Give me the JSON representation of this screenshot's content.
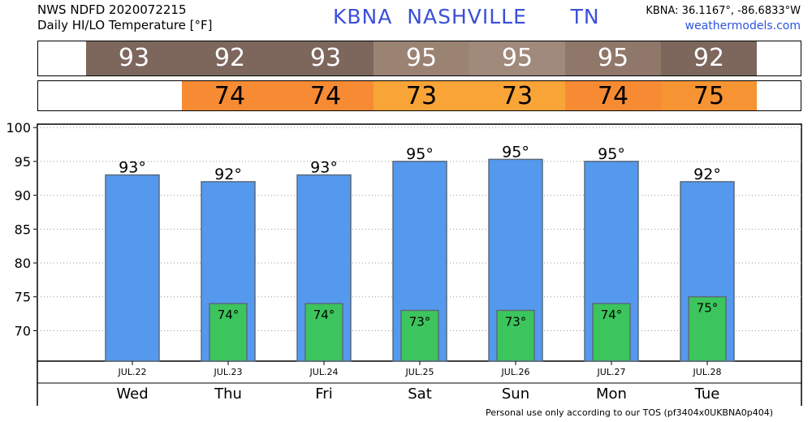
{
  "header": {
    "source_line": "NWS NDFD 2020072215",
    "product_line": "Daily HI/LO Temperature [°F]",
    "station_id": "KBNA",
    "city": "NASHVILLE",
    "state": "TN",
    "coords": "KBNA: 36.1167°, -86.6833°W",
    "site": "weathermodels.com"
  },
  "hi_strip": {
    "values": [
      "93",
      "92",
      "93",
      "95",
      "95",
      "95",
      "92"
    ],
    "colors": [
      "#7d675d",
      "#7d675d",
      "#7d675d",
      "#9b8374",
      "#a08a7c",
      "#8f786a",
      "#7d675d"
    ]
  },
  "lo_strip": {
    "values": [
      "",
      "74",
      "74",
      "73",
      "73",
      "74",
      "75"
    ],
    "colors": [
      "#ffffff",
      "#f68b34",
      "#f68b34",
      "#f9a437",
      "#f9a437",
      "#f68b34",
      "#f69434"
    ]
  },
  "footer": "Personal use only according to our TOS (pf3404x0UKBNA0p404)",
  "chart_data": {
    "type": "bar",
    "categories": [
      "Wed",
      "Thu",
      "Fri",
      "Sat",
      "Sun",
      "Mon",
      "Tue"
    ],
    "dates": [
      "JUL.22",
      "JUL.23",
      "JUL.24",
      "JUL.25",
      "JUL.26",
      "JUL.27",
      "JUL.28"
    ],
    "series": [
      {
        "name": "",
        "values": [
          93,
          92,
          93,
          95,
          95.3,
          95,
          92
        ],
        "labels": [
          "93°",
          "92°",
          "93°",
          "95°",
          "95°",
          "95°",
          "92°"
        ],
        "color": "#5599ee"
      },
      {
        "name": "",
        "values": [
          null,
          74,
          74,
          73,
          73,
          74,
          75
        ],
        "labels": [
          "",
          "74°",
          "74°",
          "73°",
          "73°",
          "74°",
          "75°"
        ],
        "color": "#3cc55c"
      }
    ],
    "ylim": [
      65.5,
      100.5
    ],
    "yticks": [
      "70",
      "75",
      "80",
      "85",
      "90",
      "95",
      "100"
    ],
    "grid": true,
    "title": "",
    "xlabel": "",
    "ylabel": ""
  }
}
